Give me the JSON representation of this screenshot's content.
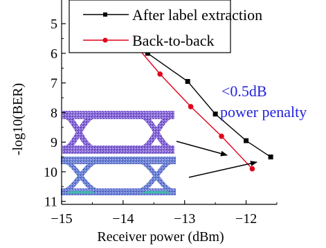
{
  "chart_data": {
    "type": "line",
    "xlabel": "Receiver power (dBm)",
    "ylabel": "-log10(BER)",
    "xlim": [
      -15,
      -11.5
    ],
    "ylim": [
      4.2,
      11.1
    ],
    "y_inverted": true,
    "x_ticks": [
      -15,
      -14,
      -13,
      -12
    ],
    "x_tick_labels": [
      "−15",
      "−14",
      "−13",
      "−12"
    ],
    "y_ticks": [
      5,
      6,
      7,
      8,
      9,
      10,
      11
    ],
    "y_tick_labels": [
      "5",
      "6",
      "7",
      "8",
      "9",
      "10",
      "11"
    ],
    "grid": false,
    "legend_position": "top-right",
    "series": [
      {
        "name": "After label extraction",
        "color": "#000000",
        "marker": "square",
        "x": [
          -14.0,
          -13.6,
          -12.95,
          -12.5,
          -12.0,
          -11.6
        ],
        "y": [
          4.2,
          6.0,
          6.95,
          8.05,
          8.95,
          9.5
        ]
      },
      {
        "name": "Back-to-back",
        "color": "#e0001a",
        "marker": "circle",
        "x": [
          -14.1,
          -13.85,
          -13.4,
          -12.9,
          -12.4,
          -11.9
        ],
        "y": [
          4.4,
          5.6,
          6.7,
          7.8,
          8.8,
          9.9
        ]
      }
    ],
    "annotations": [
      {
        "lines": [
          "<0.5dB",
          "power penalty"
        ],
        "color": "#2222dd"
      }
    ],
    "insets": [
      {
        "icon": "eye-diagram-icon",
        "trace_color": "#6a35b8"
      },
      {
        "icon": "eye-diagram-icon",
        "trace_color": "#3f5fc4"
      }
    ]
  }
}
